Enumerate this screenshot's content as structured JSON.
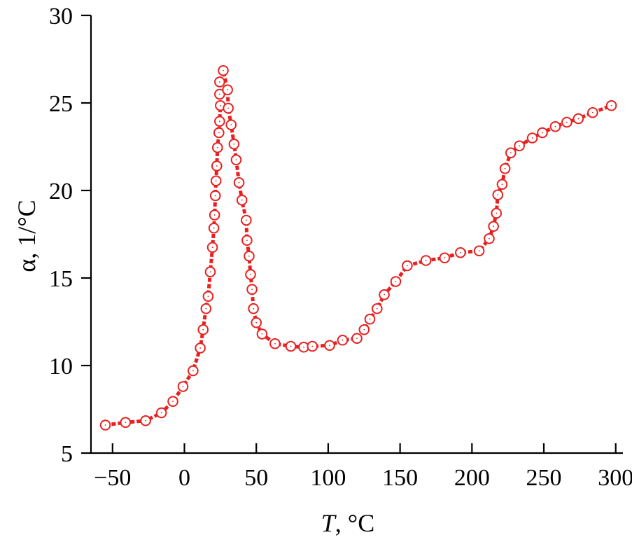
{
  "chart_data": {
    "type": "line",
    "title": "",
    "xlabel_var": "T",
    "xlabel_unit": ", °C",
    "ylabel": "α, 1/°C",
    "xlim": [
      -65,
      305
    ],
    "ylim": [
      5,
      30
    ],
    "x_ticks": [
      -50,
      0,
      50,
      100,
      150,
      200,
      250,
      300
    ],
    "x_tick_labels": [
      "−50",
      "0",
      "50",
      "100",
      "150",
      "200",
      "250",
      "300"
    ],
    "y_ticks": [
      5,
      10,
      15,
      20,
      25,
      30
    ],
    "y_tick_labels": [
      "5",
      "10",
      "15",
      "20",
      "25",
      "30"
    ],
    "grid": false,
    "legend": "none",
    "series": [
      {
        "color": "#e8201e",
        "marker": "open-circle",
        "line_style": "dashed",
        "points": [
          [
            -55,
            6.6
          ],
          [
            -41,
            6.75
          ],
          [
            -27,
            6.85
          ],
          [
            -16,
            7.3
          ],
          [
            -8,
            7.95
          ],
          [
            -1,
            8.8
          ],
          [
            6,
            9.7
          ],
          [
            11,
            11.0
          ],
          [
            13,
            12.05
          ],
          [
            15,
            13.25
          ],
          [
            16.5,
            13.95
          ],
          [
            18,
            15.35
          ],
          [
            19.5,
            16.75
          ],
          [
            20.5,
            17.85
          ],
          [
            21,
            18.6
          ],
          [
            21.5,
            19.7
          ],
          [
            22,
            20.55
          ],
          [
            22.5,
            21.4
          ],
          [
            23,
            22.45
          ],
          [
            24,
            23.3
          ],
          [
            24.5,
            23.95
          ],
          [
            25,
            24.85
          ],
          [
            24.5,
            25.5
          ],
          [
            24.5,
            26.2
          ],
          [
            27,
            26.85
          ],
          [
            30,
            25.75
          ],
          [
            30.5,
            24.7
          ],
          [
            32.5,
            23.75
          ],
          [
            34.5,
            22.65
          ],
          [
            36,
            21.75
          ],
          [
            38,
            20.45
          ],
          [
            40,
            19.45
          ],
          [
            43,
            18.3
          ],
          [
            43.5,
            17.15
          ],
          [
            45,
            16.25
          ],
          [
            46,
            15.2
          ],
          [
            47,
            14.35
          ],
          [
            48,
            13.25
          ],
          [
            50,
            12.45
          ],
          [
            54,
            11.8
          ],
          [
            63,
            11.25
          ],
          [
            74,
            11.1
          ],
          [
            83,
            11.05
          ],
          [
            89,
            11.1
          ],
          [
            101,
            11.15
          ],
          [
            110,
            11.45
          ],
          [
            120,
            11.55
          ],
          [
            125,
            12.05
          ],
          [
            129,
            12.65
          ],
          [
            134,
            13.25
          ],
          [
            139,
            14.05
          ],
          [
            147,
            14.8
          ],
          [
            155,
            15.7
          ],
          [
            168,
            16.0
          ],
          [
            181,
            16.15
          ],
          [
            192,
            16.45
          ],
          [
            205,
            16.55
          ],
          [
            212,
            17.25
          ],
          [
            215,
            17.95
          ],
          [
            217,
            18.7
          ],
          [
            218,
            19.75
          ],
          [
            221,
            20.35
          ],
          [
            223,
            21.25
          ],
          [
            227,
            22.15
          ],
          [
            233,
            22.55
          ],
          [
            242,
            23.0
          ],
          [
            249,
            23.3
          ],
          [
            258,
            23.65
          ],
          [
            266,
            23.9
          ],
          [
            274,
            24.1
          ],
          [
            284,
            24.45
          ],
          [
            297,
            24.85
          ]
        ]
      }
    ]
  }
}
